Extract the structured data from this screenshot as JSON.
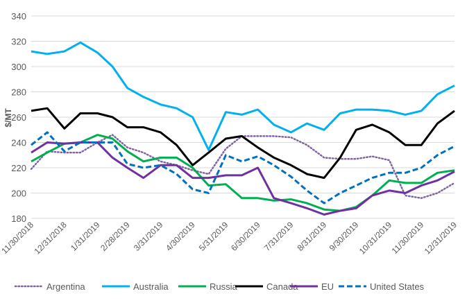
{
  "chart_data": {
    "type": "line",
    "title": "",
    "xlabel": "",
    "ylabel": "$/MT",
    "ylim": [
      180,
      340
    ],
    "yticks": [
      180,
      200,
      220,
      240,
      260,
      280,
      300,
      320,
      340
    ],
    "grid": "horizontal",
    "legend_position": "bottom",
    "xtick_labels": [
      "11/30/2018",
      "12/31/2018",
      "1/31/2019",
      "2/28/2019",
      "3/31/2019",
      "4/30/2019",
      "5/31/2019",
      "6/30/2019",
      "7/31/2019",
      "8/31/2019",
      "9/30/2019",
      "10/31/2019",
      "11/30/2019",
      "12/31/2019"
    ],
    "x": [
      "2018-11-30",
      "2018-12-15",
      "2018-12-31",
      "2019-01-15",
      "2019-01-31",
      "2019-02-14",
      "2019-02-28",
      "2019-03-15",
      "2019-03-31",
      "2019-04-15",
      "2019-04-30",
      "2019-05-15",
      "2019-05-31",
      "2019-06-15",
      "2019-06-30",
      "2019-07-15",
      "2019-07-31",
      "2019-08-15",
      "2019-08-31",
      "2019-09-15",
      "2019-09-30",
      "2019-10-15",
      "2019-10-31",
      "2019-11-15",
      "2019-11-30",
      "2019-12-15",
      "2019-12-31"
    ],
    "series": [
      {
        "name": "Argentina",
        "color": "#8064a2",
        "style": "dotted",
        "values": [
          219,
          233,
          232,
          232,
          240,
          246,
          236,
          232,
          225,
          222,
          218,
          215,
          235,
          245,
          245,
          245,
          244,
          238,
          228,
          227,
          227,
          229,
          226,
          198,
          196,
          200,
          208
        ]
      },
      {
        "name": "Australia",
        "color": "#00b0f0",
        "style": "solid",
        "values": [
          312,
          310,
          312,
          319,
          311,
          300,
          283,
          276,
          270,
          267,
          260,
          234,
          264,
          262,
          266,
          254,
          248,
          255,
          250,
          263,
          266,
          266,
          265,
          262,
          265,
          278,
          285
        ]
      },
      {
        "name": "Russia",
        "color": "#00b050",
        "style": "solid",
        "values": [
          225,
          232,
          239,
          240,
          246,
          243,
          233,
          225,
          228,
          228,
          220,
          206,
          207,
          196,
          196,
          194,
          195,
          192,
          187,
          186,
          189,
          198,
          210,
          208,
          208,
          216,
          218
        ]
      },
      {
        "name": "Canada",
        "color": "#000000",
        "style": "solid",
        "values": [
          265,
          267,
          251,
          263,
          263,
          260,
          252,
          252,
          248,
          238,
          222,
          232,
          243,
          245,
          236,
          228,
          222,
          215,
          212,
          228,
          250,
          254,
          248,
          238,
          238,
          255,
          265
        ]
      },
      {
        "name": "EU",
        "color": "#7030a0",
        "style": "solid",
        "values": [
          232,
          240,
          239,
          240,
          240,
          228,
          220,
          212,
          222,
          222,
          212,
          212,
          214,
          214,
          220,
          196,
          192,
          188,
          183,
          186,
          188,
          198,
          202,
          200,
          206,
          210,
          217
        ]
      },
      {
        "name": "United States",
        "color": "#0070c0",
        "style": "dashed",
        "values": [
          238,
          248,
          233,
          240,
          240,
          240,
          223,
          220,
          222,
          215,
          203,
          200,
          230,
          225,
          229,
          222,
          213,
          202,
          192,
          200,
          206,
          212,
          216,
          216,
          220,
          230,
          237
        ]
      }
    ]
  }
}
